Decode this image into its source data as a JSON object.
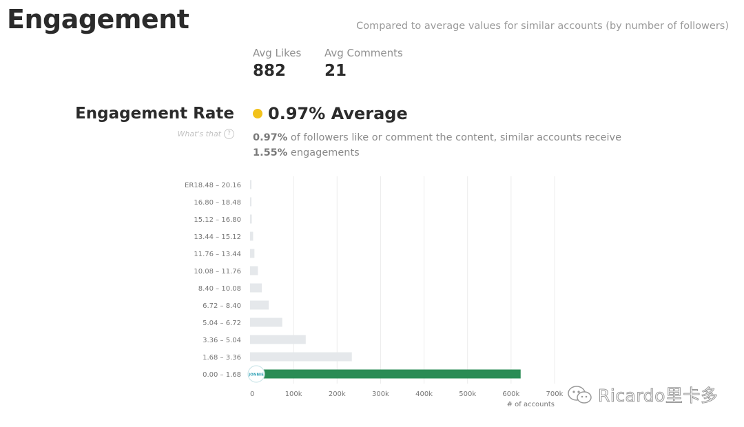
{
  "title": "Engagement",
  "compare_note": "Compared to average values for similar accounts (by number of followers)",
  "stats": {
    "avg_likes_label": "Avg Likes",
    "avg_likes_value": "882",
    "avg_comments_label": "Avg Comments",
    "avg_comments_value": "21"
  },
  "engagement_rate": {
    "heading": "Engagement Rate",
    "whats_that": "What's that",
    "help_icon": "question-circle-icon",
    "average_label": "0.97% Average",
    "average_color": "#f2c21b",
    "desc_value": "0.97%",
    "desc_text_1": " of followers like or comment the content, similar accounts receive",
    "desc_value_2": "1.55%",
    "desc_text_2": " engagements"
  },
  "chart_data": {
    "type": "bar",
    "orientation": "horizontal",
    "y_prefix": "ER",
    "categories": [
      "18.48 – 20.16",
      "16.80 – 18.48",
      "15.12 – 16.80",
      "13.44 – 15.12",
      "11.76 – 13.44",
      "10.08 – 11.76",
      "8.40 – 10.08",
      "6.72 – 8.40",
      "5.04 – 6.72",
      "3.36 – 5.04",
      "1.68 – 3.36",
      "0.00 – 1.68"
    ],
    "values": [
      2000,
      3000,
      4000,
      7000,
      10000,
      18000,
      27000,
      43000,
      74000,
      128000,
      234000,
      622000
    ],
    "highlight_index": 11,
    "highlight_color": "#2a8c55",
    "bar_color": "#e5e8eb",
    "xlabel": "# of accounts",
    "xlim": [
      0,
      700000
    ],
    "x_ticks": [
      0,
      100000,
      200000,
      300000,
      400000,
      500000,
      600000,
      700000
    ],
    "x_tick_labels": [
      "0",
      "100k",
      "200k",
      "300k",
      "400k",
      "500k",
      "600k",
      "700k"
    ],
    "grid": true,
    "marker_label": "JONNIE"
  },
  "watermark": {
    "icon": "wechat-icon",
    "text": "Ricardo里卡多"
  }
}
